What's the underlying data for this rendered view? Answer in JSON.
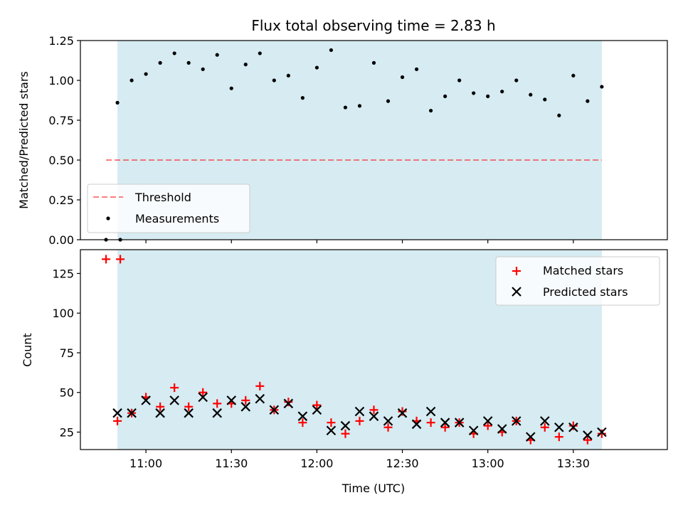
{
  "colors": {
    "observing_window": "#add8e6",
    "threshold": "#ff0000",
    "measurement": "#000000",
    "matched": "#ff0000",
    "predicted": "#000000"
  },
  "chart_data": [
    {
      "type": "scatter",
      "title": "Flux total observing time = 2.83 h",
      "ylabel": "Matched/Predicted stars",
      "xlim": [
        "10:37",
        "14:03"
      ],
      "ylim": [
        0,
        1.25
      ],
      "y_ticks": [
        "0.00",
        "0.25",
        "0.50",
        "0.75",
        "1.00",
        "1.25"
      ],
      "observing_window": [
        "10:50",
        "13:40"
      ],
      "threshold": {
        "value": 0.5,
        "x_range": [
          "10:46",
          "13:40"
        ]
      },
      "legend": {
        "position": "lower-left",
        "entries": [
          "Threshold",
          "Measurements"
        ]
      },
      "series": [
        {
          "name": "Measurements",
          "marker": "dot",
          "x": [
            "10:46",
            "10:51",
            "10:50",
            "10:55",
            "11:00",
            "11:05",
            "11:10",
            "11:15",
            "11:20",
            "11:25",
            "11:30",
            "11:35",
            "11:40",
            "11:45",
            "11:50",
            "11:55",
            "12:00",
            "12:05",
            "12:10",
            "12:15",
            "12:20",
            "12:25",
            "12:30",
            "12:35",
            "12:40",
            "12:45",
            "12:50",
            "12:55",
            "13:00",
            "13:05",
            "13:10",
            "13:15",
            "13:20",
            "13:25",
            "13:30",
            "13:35",
            "13:40"
          ],
          "y": [
            0.0,
            0.0,
            0.86,
            1.0,
            1.04,
            1.11,
            1.17,
            1.11,
            1.07,
            1.16,
            0.95,
            1.1,
            1.17,
            1.0,
            1.03,
            0.89,
            1.08,
            1.19,
            0.83,
            0.84,
            1.11,
            0.87,
            1.02,
            1.07,
            0.81,
            0.9,
            1.0,
            0.92,
            0.9,
            0.93,
            1.0,
            0.91,
            0.88,
            0.78,
            1.03,
            0.87,
            0.96
          ]
        }
      ]
    },
    {
      "type": "scatter",
      "xlabel": "Time (UTC)",
      "ylabel": "Count",
      "xlim": [
        "10:37",
        "14:03"
      ],
      "ylim": [
        14,
        140
      ],
      "x_ticks": [
        "11:00",
        "11:30",
        "12:00",
        "12:30",
        "13:00",
        "13:30"
      ],
      "y_ticks": [
        "25",
        "50",
        "75",
        "100",
        "125"
      ],
      "observing_window": [
        "10:50",
        "13:40"
      ],
      "legend": {
        "position": "upper-right",
        "entries": [
          "Matched stars",
          "Predicted stars"
        ]
      },
      "series": [
        {
          "name": "Matched stars",
          "marker": "plus",
          "x": [
            "10:46",
            "10:51",
            "10:50",
            "10:55",
            "11:00",
            "11:05",
            "11:10",
            "11:15",
            "11:20",
            "11:25",
            "11:30",
            "11:35",
            "11:40",
            "11:45",
            "11:50",
            "11:55",
            "12:00",
            "12:05",
            "12:10",
            "12:15",
            "12:20",
            "12:25",
            "12:30",
            "12:35",
            "12:40",
            "12:45",
            "12:50",
            "12:55",
            "13:00",
            "13:05",
            "13:10",
            "13:15",
            "13:20",
            "13:25",
            "13:30",
            "13:35",
            "13:40"
          ],
          "y": [
            134,
            134,
            32,
            37,
            47,
            41,
            53,
            41,
            50,
            43,
            43,
            45,
            54,
            39,
            44,
            31,
            42,
            31,
            24,
            32,
            39,
            28,
            38,
            32,
            31,
            28,
            31,
            24,
            29,
            25,
            32,
            20,
            28,
            22,
            29,
            20,
            24
          ]
        },
        {
          "name": "Predicted stars",
          "marker": "x",
          "x": [
            "10:50",
            "10:55",
            "11:00",
            "11:05",
            "11:10",
            "11:15",
            "11:20",
            "11:25",
            "11:30",
            "11:35",
            "11:40",
            "11:45",
            "11:50",
            "11:55",
            "12:00",
            "12:05",
            "12:10",
            "12:15",
            "12:20",
            "12:25",
            "12:30",
            "12:35",
            "12:40",
            "12:45",
            "12:50",
            "12:55",
            "13:00",
            "13:05",
            "13:10",
            "13:15",
            "13:20",
            "13:25",
            "13:30",
            "13:35",
            "13:40"
          ],
          "y": [
            37,
            37,
            45,
            37,
            45,
            37,
            47,
            37,
            45,
            41,
            46,
            39,
            43,
            35,
            39,
            26,
            29,
            38,
            35,
            32,
            37,
            30,
            38,
            31,
            31,
            26,
            32,
            27,
            32,
            22,
            32,
            28,
            28,
            23,
            25
          ]
        }
      ]
    }
  ]
}
